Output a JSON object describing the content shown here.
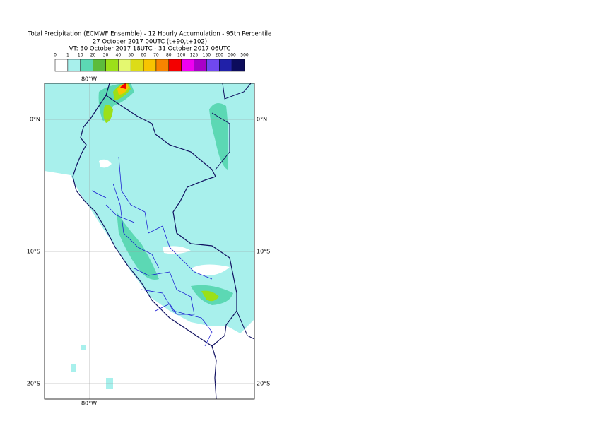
{
  "title": [
    "Total Precipitation (ECMWF Ensemble) - 12 Hourly Accumulation - 95th Percentile",
    "27 October 2017 00UTC (t+90,t+102)",
    "VT: 30 October 2017 18UTC - 31 October 2017 06UTC"
  ],
  "legend": {
    "levels": [
      "0",
      "1",
      "10",
      "20",
      "30",
      "40",
      "50",
      "60",
      "70",
      "80",
      "100",
      "125",
      "150",
      "200",
      "300",
      "500"
    ],
    "colors": [
      "#ffffff",
      "#a8f0ec",
      "#5cd8b4",
      "#5cbc3c",
      "#9ce018",
      "#e4f870",
      "#dcdc18",
      "#f8c400",
      "#f88400",
      "#f40000",
      "#f000f0",
      "#a800c8",
      "#7048f0",
      "#2020a8",
      "#0c0c5c"
    ]
  },
  "map": {
    "lon_labels": {
      "top": "80°W",
      "bottom": "80°W"
    },
    "lat_labels": [
      {
        "left": "0°N",
        "right": "0°N"
      },
      {
        "left": "10°S",
        "right": "10°S"
      },
      {
        "left": "20°S",
        "right": "20°S"
      }
    ]
  }
}
